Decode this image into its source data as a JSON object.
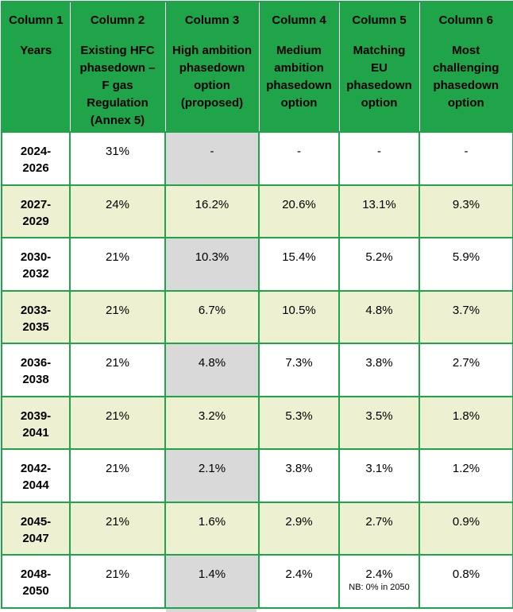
{
  "colors": {
    "header_green": "#1FA44A",
    "grid_green": "#1FA44A",
    "header_divider_white": "#FFFFFF",
    "row_white": "#FFFFFF",
    "row_cream": "#EEF0D2",
    "column3_gray": "#D9D9D9",
    "text_black": "#000000"
  },
  "chart_data": {
    "type": "table",
    "columns": [
      {
        "label": "Column 1",
        "description": "Years",
        "description_lines": [
          "Years"
        ]
      },
      {
        "label": "Column 2",
        "description": "Existing HFC phasedown – F gas Regulation (Annex 5)",
        "description_lines": [
          "Existing HFC",
          "phasedown –",
          "F gas",
          "Regulation",
          "(Annex 5)"
        ]
      },
      {
        "label": "Column 3",
        "description": "High ambition phasedown option (proposed)",
        "description_lines": [
          "High ambition",
          "phasedown",
          "option",
          "(proposed)"
        ]
      },
      {
        "label": "Column 4",
        "description": "Medium ambition phasedown option",
        "description_lines": [
          "Medium",
          "ambition",
          "phasedown",
          "option"
        ]
      },
      {
        "label": "Column 5",
        "description": "Matching EU phasedown option",
        "description_lines": [
          "Matching",
          "EU",
          "phasedown",
          "option"
        ]
      },
      {
        "label": "Column 6",
        "description": "Most challenging phasedown option",
        "description_lines": [
          "Most",
          "challenging",
          "phasedown",
          "option"
        ]
      }
    ],
    "shaded_column": {
      "header_label": "Column 3",
      "value_index": 1
    },
    "rows": [
      {
        "years": "2024-2026",
        "years_lines": [
          "2024-",
          "2026"
        ],
        "values": [
          "31%",
          "-",
          "-",
          "-",
          "-"
        ],
        "cream_background": false
      },
      {
        "years": "2027-2029",
        "years_lines": [
          "2027-",
          "2029"
        ],
        "values": [
          "24%",
          "16.2%",
          "20.6%",
          "13.1%",
          "9.3%"
        ],
        "cream_background": true
      },
      {
        "years": "2030-2032",
        "years_lines": [
          "2030-",
          "2032"
        ],
        "values": [
          "21%",
          "10.3%",
          "15.4%",
          "5.2%",
          "5.9%"
        ],
        "cream_background": false
      },
      {
        "years": "2033-2035",
        "years_lines": [
          "2033-",
          "2035"
        ],
        "values": [
          "21%",
          "6.7%",
          "10.5%",
          "4.8%",
          "3.7%"
        ],
        "cream_background": true
      },
      {
        "years": "2036-2038",
        "years_lines": [
          "2036-",
          "2038"
        ],
        "values": [
          "21%",
          "4.8%",
          "7.3%",
          "3.8%",
          "2.7%"
        ],
        "cream_background": false
      },
      {
        "years": "2039-2041",
        "years_lines": [
          "2039-",
          "2041"
        ],
        "values": [
          "21%",
          "3.2%",
          "5.3%",
          "3.5%",
          "1.8%"
        ],
        "cream_background": true
      },
      {
        "years": "2042-2044",
        "years_lines": [
          "2042-",
          "2044"
        ],
        "values": [
          "21%",
          "2.1%",
          "3.8%",
          "3.1%",
          "1.2%"
        ],
        "cream_background": false
      },
      {
        "years": "2045-2047",
        "years_lines": [
          "2045-",
          "2047"
        ],
        "values": [
          "21%",
          "1.6%",
          "2.9%",
          "2.7%",
          "0.9%"
        ],
        "cream_background": true
      },
      {
        "years": "2048-2050",
        "years_lines": [
          "2048-",
          "2050"
        ],
        "values": [
          "21%",
          "1.4%",
          "2.4%",
          "2.4%",
          "0.8%"
        ],
        "cream_background": false,
        "note": "NB: 0% in 2050",
        "note_value_index": 3
      }
    ]
  }
}
